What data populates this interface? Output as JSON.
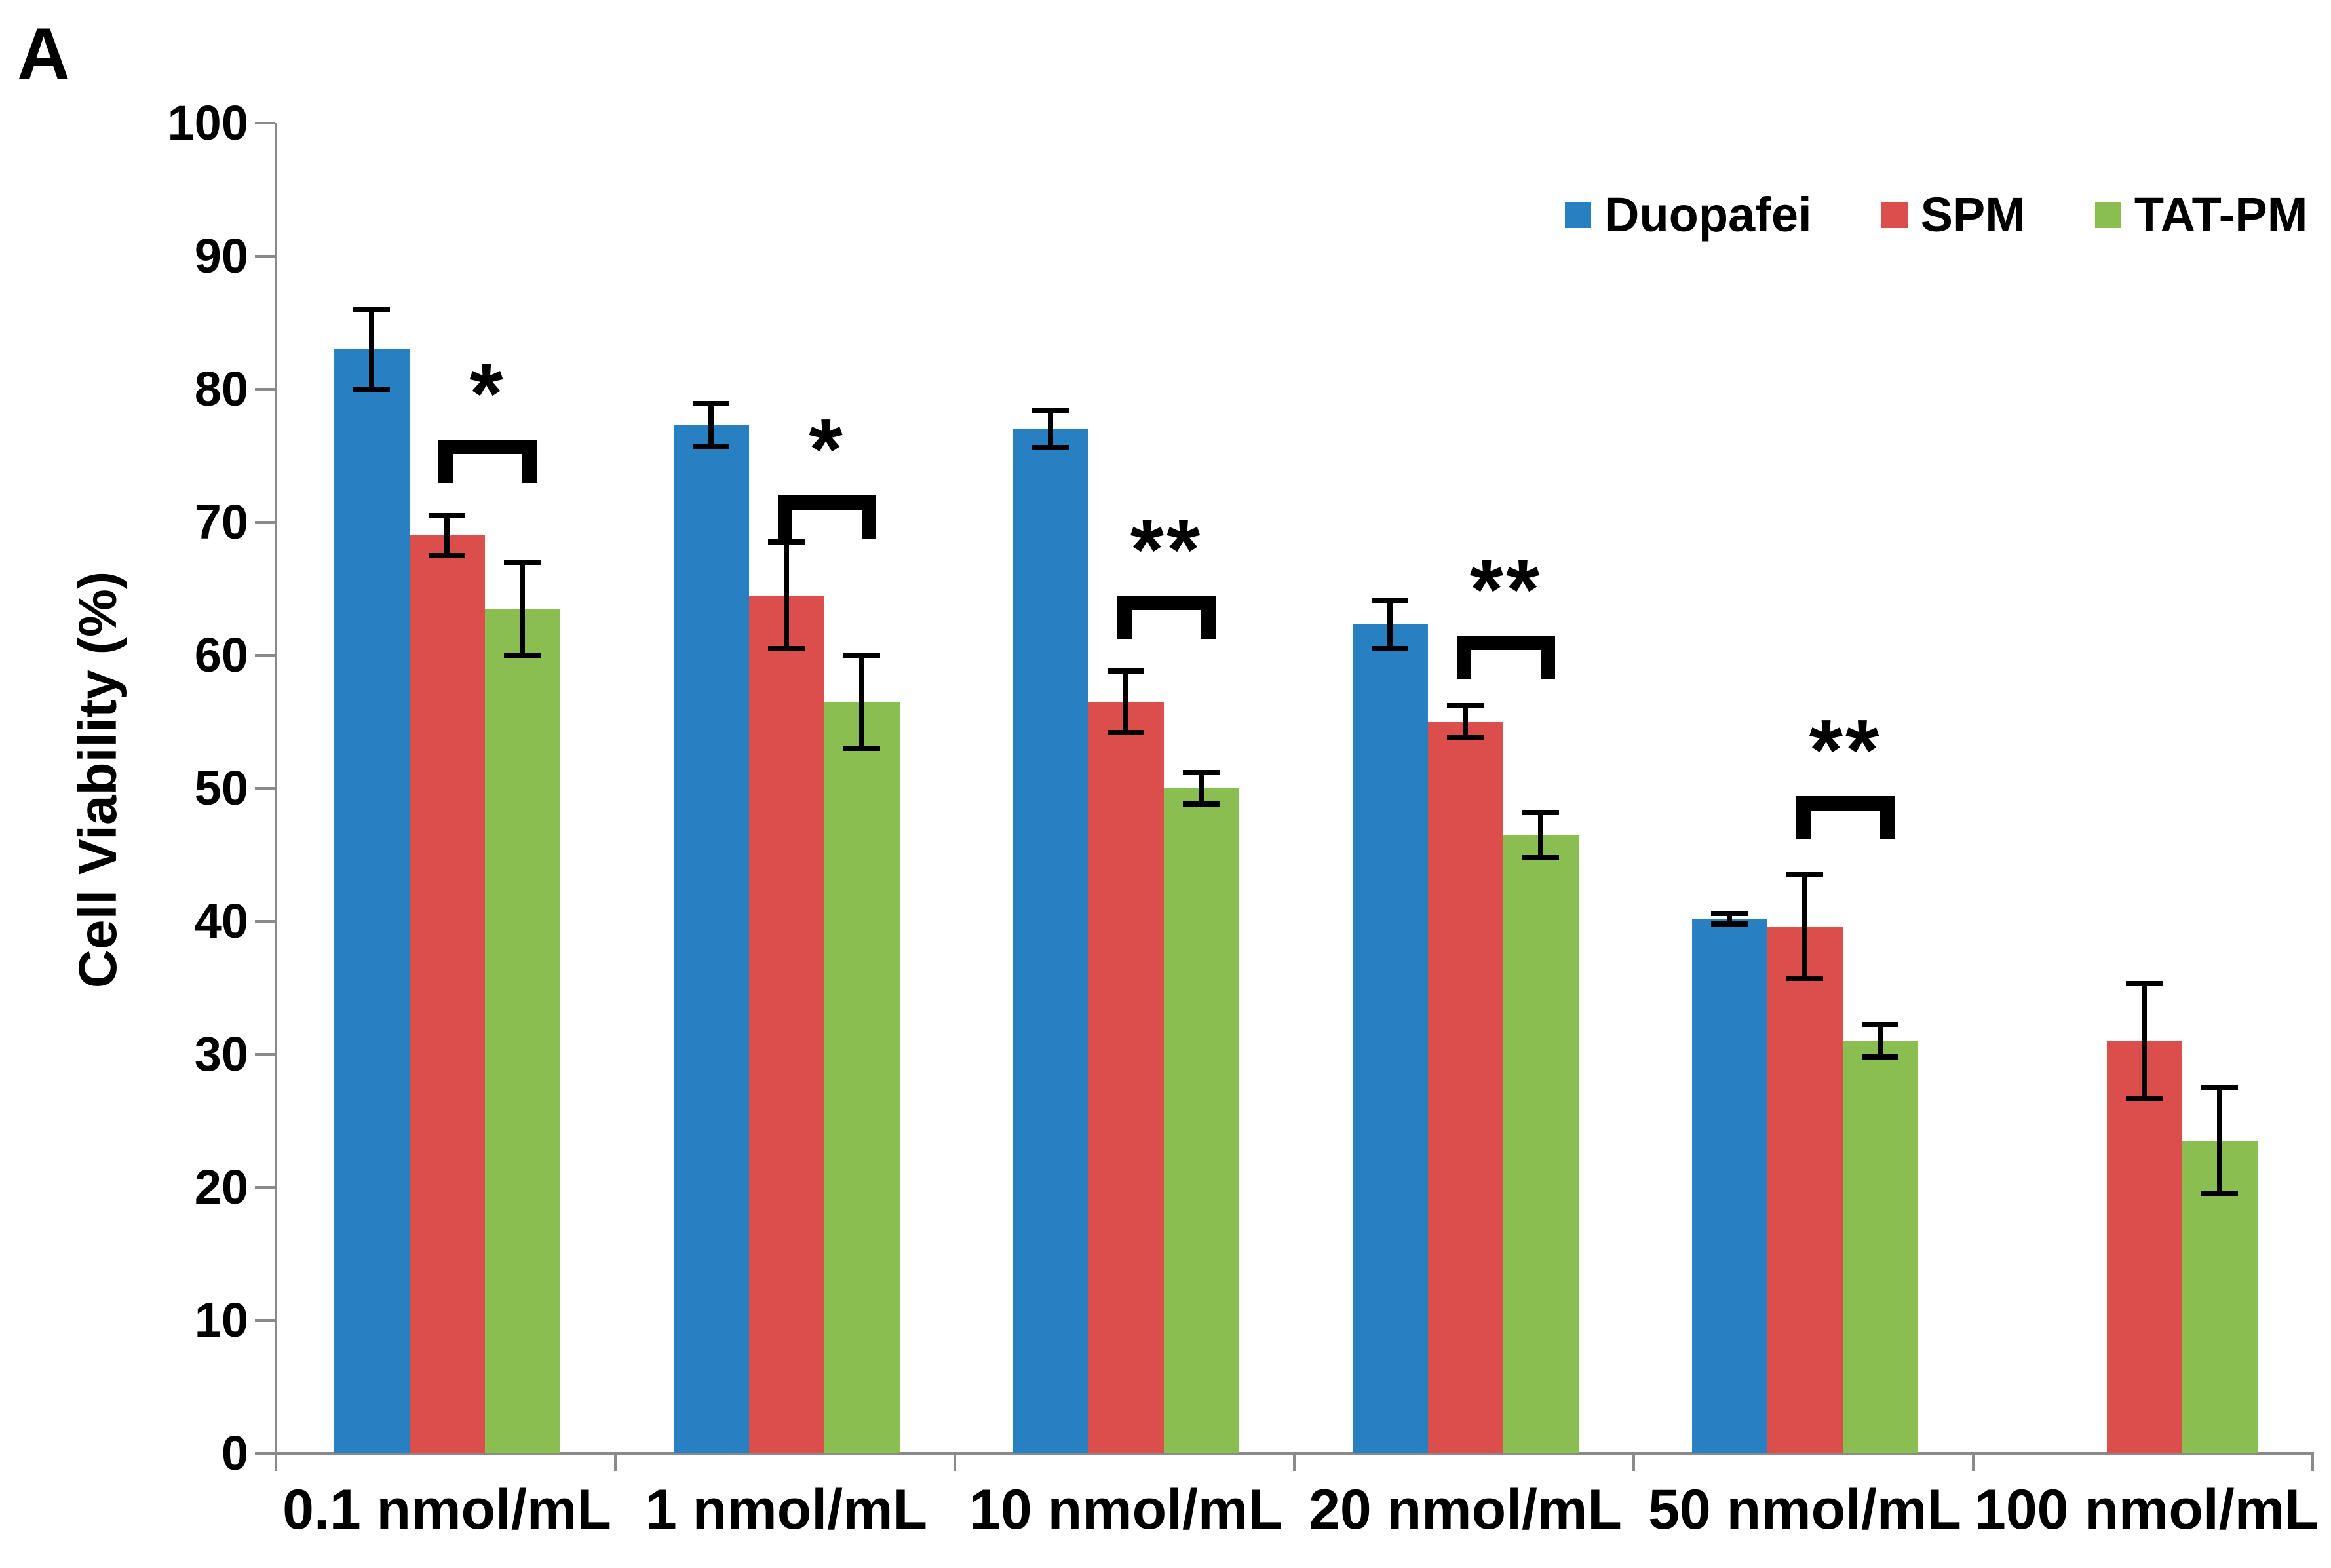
{
  "panel_label": "A",
  "chart_data": {
    "type": "bar",
    "title": "",
    "xlabel": "",
    "ylabel": "Cell Viability (%)",
    "ylim": [
      0,
      100
    ],
    "ytick_step": 10,
    "ytick_labels": [
      "0",
      "10",
      "20",
      "30",
      "40",
      "50",
      "60",
      "70",
      "80",
      "90",
      "100"
    ],
    "grid": false,
    "error_bars": true,
    "legend_position": "top-right",
    "axis_color": "#8A8A8A",
    "text_color": "#000000",
    "categories": [
      "0.1 nmol/mL",
      "1 nmol/mL",
      "10 nmol/mL",
      "20 nmol/mL",
      "50 nmol/mL",
      "100 nmol/mL"
    ],
    "series": [
      {
        "name": "Duopafei",
        "color": "#2780C1",
        "values": [
          83,
          77.3,
          77,
          62.3,
          40.2,
          null
        ],
        "errors": [
          3,
          1.6,
          1.4,
          1.8,
          0.4,
          null
        ]
      },
      {
        "name": "SPM",
        "color": "#DB4E4B",
        "values": [
          69,
          64.5,
          56.5,
          55,
          39.6,
          31
        ],
        "errors": [
          1.5,
          4,
          2.3,
          1.2,
          3.9,
          4.3
        ]
      },
      {
        "name": "TAT-PM",
        "color": "#8BBE51",
        "values": [
          63.5,
          56.5,
          50,
          46.5,
          31,
          23.5
        ],
        "errors": [
          3.5,
          3.5,
          1.2,
          1.7,
          1.2,
          4
        ]
      }
    ],
    "significance": [
      {
        "category_index": 0,
        "between": [
          "SPM",
          "TAT-PM"
        ],
        "label": "*",
        "bracket_top": 76.2
      },
      {
        "category_index": 1,
        "between": [
          "SPM",
          "TAT-PM"
        ],
        "label": "*",
        "bracket_top": 72
      },
      {
        "category_index": 2,
        "between": [
          "SPM",
          "TAT-PM"
        ],
        "label": "**",
        "bracket_top": 64.5
      },
      {
        "category_index": 3,
        "between": [
          "SPM",
          "TAT-PM"
        ],
        "label": "**",
        "bracket_top": 61.5
      },
      {
        "category_index": 4,
        "between": [
          "SPM",
          "TAT-PM"
        ],
        "label": "**",
        "bracket_top": 49.4
      }
    ]
  }
}
